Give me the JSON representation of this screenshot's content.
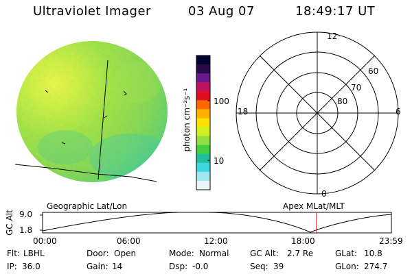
{
  "header": {
    "instrument": "Ultraviolet Imager",
    "date": "03 Aug 07",
    "time": "18:49:17 UT"
  },
  "colorbar": {
    "unit_label": "photon cm⁻²s⁻¹",
    "ticks": [
      "100",
      "10"
    ],
    "scale": "log",
    "colors": [
      "#000033",
      "#2a0b4a",
      "#6a1a8a",
      "#c01060",
      "#e01020",
      "#ff6a00",
      "#ffb000",
      "#ffe000",
      "#d0f020",
      "#90e040",
      "#40d040",
      "#20c0a0",
      "#40d8e0",
      "#a0e8f0",
      "#e8f4f8"
    ]
  },
  "polar_plot": {
    "hour_labels": {
      "top": "12",
      "left": "18",
      "right": "6",
      "bottom": "0"
    },
    "lat_labels": [
      "60",
      "70",
      "80"
    ]
  },
  "timeline": {
    "left_title": "Geographic Lat/Lon",
    "right_title": "Apex MLat/MLT",
    "ylabel": "GC Alt",
    "yticks": [
      "9.0",
      "1.8"
    ],
    "xticks": [
      "00:00",
      "06:00",
      "12:00",
      "18:00",
      "23:59"
    ],
    "marker_color": "#d02020",
    "marker_time_fraction": 0.785
  },
  "status": {
    "flt_label": "Flt:",
    "flt_value": "LBHL",
    "ip_label": "IP:",
    "ip_value": "36.0",
    "door_label": "Door:",
    "door_value": "Open",
    "gain_label": "Gain:",
    "gain_value": "14",
    "mode_label": "Mode:",
    "mode_value": "Normal",
    "dsp_label": "Dsp:",
    "dsp_value": "-0.0",
    "gcalt_label": "GC Alt:",
    "gcalt_value": "2.7 Re",
    "seq_label": "Seq:",
    "seq_value": "39",
    "glat_label": "GLat:",
    "glat_value": "10.8",
    "glon_label": "GLon:",
    "glon_value": "274.7"
  }
}
